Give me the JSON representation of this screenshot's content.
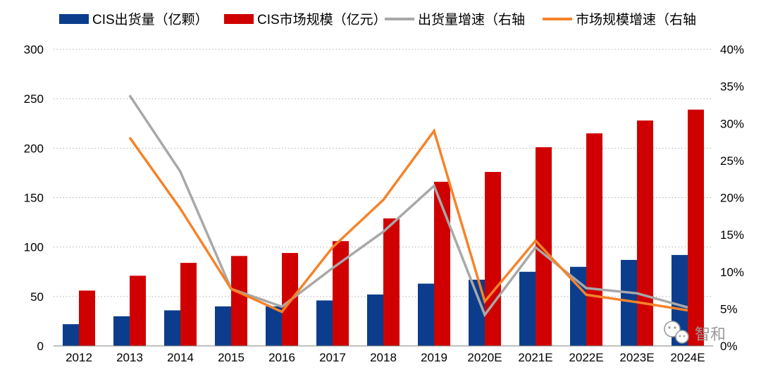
{
  "chart_data": {
    "type": "bar",
    "categories": [
      "2012",
      "2013",
      "2014",
      "2015",
      "2016",
      "2017",
      "2018",
      "2019",
      "2020E",
      "2021E",
      "2022E",
      "2023E",
      "2024E"
    ],
    "series": [
      {
        "name": "CIS出货量（亿颗）",
        "kind": "bar",
        "axis": "left",
        "color": "#0B3D8C",
        "values": [
          22,
          30,
          36,
          40,
          40,
          46,
          52,
          63,
          67,
          75,
          80,
          87,
          92
        ]
      },
      {
        "name": "CIS市场规模（亿元）",
        "kind": "bar",
        "axis": "left",
        "color": "#D00000",
        "values": [
          56,
          71,
          84,
          91,
          94,
          106,
          129,
          166,
          176,
          201,
          215,
          228,
          239
        ]
      },
      {
        "name": "出货量增速（右轴",
        "kind": "line",
        "axis": "right",
        "color": "#A8A8A8",
        "values": [
          null,
          0.338,
          0.235,
          0.077,
          0.053,
          0.105,
          0.154,
          0.216,
          0.042,
          0.133,
          0.078,
          0.071,
          0.052
        ]
      },
      {
        "name": "市场规模增速（右轴",
        "kind": "line",
        "axis": "right",
        "color": "#F5832A",
        "values": [
          null,
          0.281,
          0.185,
          0.077,
          0.046,
          0.133,
          0.197,
          0.29,
          0.06,
          0.142,
          0.069,
          0.059,
          0.048
        ]
      }
    ],
    "y_left": {
      "ticks": [
        "0",
        "50",
        "100",
        "150",
        "200",
        "250",
        "300"
      ],
      "min": 0,
      "max": 300
    },
    "y_right": {
      "ticks": [
        "0%",
        "5%",
        "10%",
        "15%",
        "20%",
        "25%",
        "30%",
        "35%",
        "40%"
      ],
      "min": 0,
      "max": 0.4
    },
    "legend_position": "top",
    "grid": "dotted horizontal"
  },
  "watermark": {
    "text": "智和",
    "icon": "wechat-icon"
  }
}
